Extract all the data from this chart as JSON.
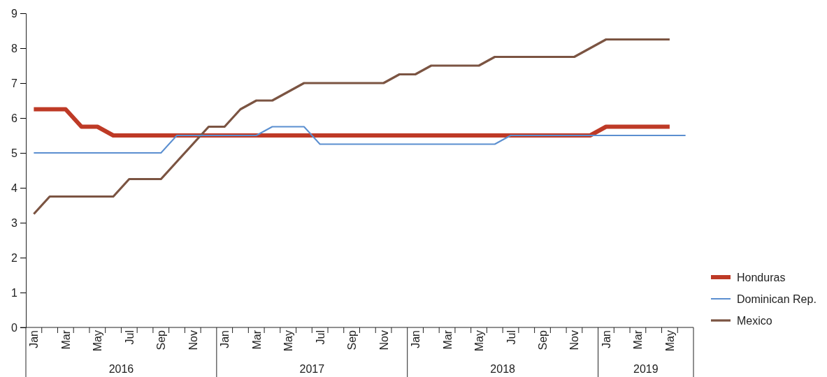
{
  "chart_data": {
    "type": "line",
    "categories": [
      "Jan",
      null,
      "Mar",
      null,
      "May",
      null,
      "Jul",
      null,
      "Sep",
      null,
      "Nov",
      null,
      "Jan",
      null,
      "Mar",
      null,
      "May",
      null,
      "Jul",
      null,
      "Sep",
      null,
      "Nov",
      null,
      "Jan",
      null,
      "Mar",
      null,
      "May",
      null,
      "Jul",
      null,
      "Sep",
      null,
      "Nov",
      null,
      "Jan",
      null,
      "Mar",
      null,
      "May",
      null
    ],
    "series": [
      {
        "name": "Honduras",
        "color": "#be3a26",
        "values": [
          6.25,
          6.25,
          6.25,
          5.75,
          5.75,
          5.5,
          5.5,
          5.5,
          5.5,
          5.5,
          5.5,
          5.5,
          5.5,
          5.5,
          5.5,
          5.5,
          5.5,
          5.5,
          5.5,
          5.5,
          5.5,
          5.5,
          5.5,
          5.5,
          5.5,
          5.5,
          5.5,
          5.5,
          5.5,
          5.5,
          5.5,
          5.5,
          5.5,
          5.5,
          5.5,
          5.5,
          5.75,
          5.75,
          5.75,
          5.75,
          5.75,
          null
        ]
      },
      {
        "name": "Dominican Rep.",
        "color": "#5b8fd0",
        "values": [
          5,
          5,
          5,
          5,
          5,
          5,
          5,
          5,
          5,
          5.5,
          5.5,
          5.5,
          5.5,
          5.5,
          5.5,
          5.75,
          5.75,
          5.75,
          5.25,
          5.25,
          5.25,
          5.25,
          5.25,
          5.25,
          5.25,
          5.25,
          5.25,
          5.25,
          5.25,
          5.25,
          5.5,
          5.5,
          5.5,
          5.5,
          5.5,
          5.5,
          5.5,
          5.5,
          5.5,
          5.5,
          5.5,
          5.5
        ]
      },
      {
        "name": "Mexico",
        "color": "#7b5442",
        "values": [
          3.25,
          3.75,
          3.75,
          3.75,
          3.75,
          3.75,
          4.25,
          4.25,
          4.25,
          4.75,
          5.25,
          5.75,
          5.75,
          6.25,
          6.5,
          6.5,
          6.75,
          7,
          7,
          7,
          7,
          7,
          7,
          7.25,
          7.25,
          7.5,
          7.5,
          7.5,
          7.5,
          7.75,
          7.75,
          7.75,
          7.75,
          7.75,
          7.75,
          8,
          8.25,
          8.25,
          8.25,
          8.25,
          8.25,
          null
        ]
      }
    ],
    "ylim": [
      0,
      9
    ],
    "yticks": [
      0,
      1,
      2,
      3,
      4,
      5,
      6,
      7,
      8,
      9
    ],
    "annotations": [
      "2016",
      "2017",
      "2018",
      "2019"
    ],
    "legend": "right"
  }
}
